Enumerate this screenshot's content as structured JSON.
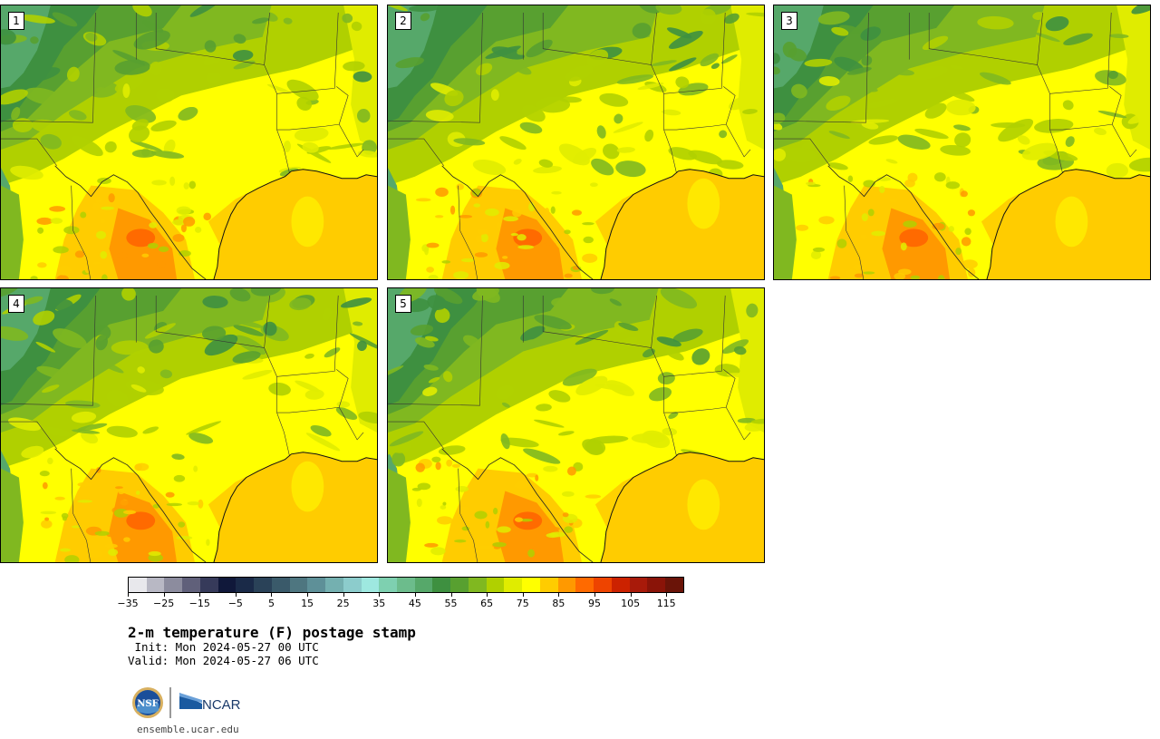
{
  "title": "2-m temperature (F) postage stamp",
  "init_line": " Init: Mon 2024-05-27 00 UTC",
  "valid_line": "Valid: Mon 2024-05-27 06 UTC",
  "footer_url": "ensemble.ucar.edu",
  "logos": {
    "nsf": "NSF",
    "ncar": "NCAR"
  },
  "members": [
    {
      "label": "1"
    },
    {
      "label": "2"
    },
    {
      "label": "3"
    },
    {
      "label": "4"
    },
    {
      "label": "5"
    }
  ],
  "colorbar": {
    "ticks": [
      "−35",
      "−25",
      "−15",
      "−5",
      "5",
      "15",
      "25",
      "35",
      "45",
      "55",
      "65",
      "75",
      "85",
      "95",
      "105",
      "115"
    ],
    "colors": [
      "#e8e8ec",
      "#b8b8c4",
      "#8c8c9e",
      "#60607a",
      "#363a5a",
      "#10183a",
      "#1a2a48",
      "#2a4258",
      "#3a5a6a",
      "#4e7680",
      "#5e9098",
      "#74b0b0",
      "#8ccccc",
      "#9ee8e0",
      "#7ed0b0",
      "#6cbc8c",
      "#56a86a",
      "#3e9040",
      "#58a030",
      "#80b820",
      "#b0d000",
      "#e0ec00",
      "#ffff00",
      "#ffcc00",
      "#ff9900",
      "#ff6a00",
      "#ee4400",
      "#cc2200",
      "#a81a0a",
      "#8a1408",
      "#6a1408"
    ],
    "colors_meaning": "temperature F from -35 to 120 in 5F bins"
  }
}
